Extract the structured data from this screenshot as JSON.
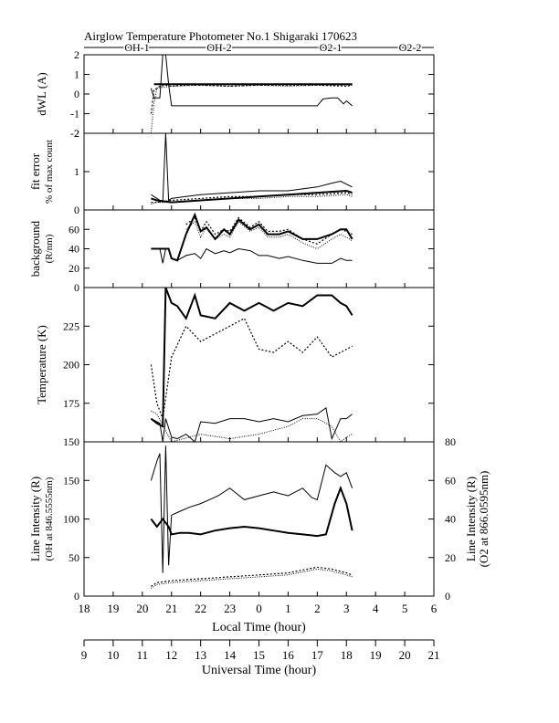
{
  "title": "Airglow Temperature Photometer No.1   Shigaraki   170623",
  "legend": [
    {
      "name": "OH-1",
      "style": "solid-thin"
    },
    {
      "name": "OH-2",
      "style": "solid-thick"
    },
    {
      "name": "O2-1",
      "style": "dotted"
    },
    {
      "name": "O2-2",
      "style": "dotted-fine"
    }
  ],
  "chart_data": {
    "type": "line",
    "x_range_local": [
      18,
      30
    ],
    "x_local_ticks": [
      "18",
      "19",
      "20",
      "21",
      "22",
      "23",
      "0",
      "1",
      "2",
      "3",
      "4",
      "5",
      "6"
    ],
    "x_ut_ticks": [
      "9",
      "10",
      "11",
      "12",
      "13",
      "14",
      "15",
      "16",
      "17",
      "18",
      "19",
      "20",
      "21"
    ],
    "xlabel_local": "Local Time (hour)",
    "xlabel_ut": "Universal Time (hour)",
    "panels": [
      {
        "id": "dwl",
        "ylabel": [
          "dWL (A)"
        ],
        "ylim": [
          -2,
          2
        ],
        "ticks": [
          "2",
          "1",
          "0",
          "-1",
          "-2"
        ],
        "series": [
          {
            "name": "OH-1",
            "x": [
              20.3,
              20.4,
              20.6,
              20.7,
              20.8,
              20.9,
              21.0,
              21.3,
              21.6,
              22.0,
              22.5,
              23.0,
              23.5,
              24.0,
              25.0,
              25.5,
              26.0,
              26.2,
              26.5,
              26.7,
              26.9,
              27.0,
              27.2
            ],
            "y": [
              0.3,
              -0.2,
              -0.2,
              2.1,
              2.0,
              0.5,
              -0.6,
              -0.6,
              -0.6,
              -0.6,
              -0.6,
              -0.6,
              -0.6,
              -0.6,
              -0.6,
              -0.6,
              -0.6,
              -0.25,
              -0.2,
              -0.2,
              -0.5,
              -0.35,
              -0.6
            ]
          },
          {
            "name": "OH-2",
            "x": [
              20.4,
              20.6,
              20.8,
              21.0,
              22.0,
              23.0,
              24.0,
              25.0,
              26.0,
              27.0,
              27.2
            ],
            "y": [
              0.5,
              0.5,
              0.5,
              0.5,
              0.5,
              0.5,
              0.5,
              0.5,
              0.5,
              0.5,
              0.5
            ]
          },
          {
            "name": "O2-1",
            "x": [
              20.3,
              20.4,
              20.6,
              20.8,
              21.0,
              21.5,
              22.0,
              23.0,
              24.0,
              25.0,
              26.0,
              27.0,
              27.2
            ],
            "y": [
              -1.0,
              0.2,
              0.4,
              0.45,
              0.4,
              0.45,
              0.45,
              0.4,
              0.45,
              0.45,
              0.45,
              0.4,
              0.45
            ]
          },
          {
            "name": "O2-2",
            "x": [
              20.3,
              20.4,
              20.5,
              21.0,
              22.0,
              23.0,
              24.0,
              25.0,
              26.0,
              27.0,
              27.2
            ],
            "y": [
              -2.0,
              -0.5,
              0.3,
              0.4,
              0.45,
              0.4,
              0.45,
              0.4,
              0.45,
              0.45,
              0.45
            ]
          }
        ]
      },
      {
        "id": "fit",
        "ylabel": [
          "fit error",
          "% of max count"
        ],
        "ylim": [
          0,
          2
        ],
        "ticks": [
          "2",
          "1",
          "0"
        ],
        "series": [
          {
            "name": "OH-1",
            "x": [
              20.3,
              20.5,
              20.7,
              20.8,
              20.9,
              21.0,
              21.5,
              22.0,
              23.0,
              24.0,
              25.0,
              26.0,
              26.5,
              26.8,
              27.2
            ],
            "y": [
              0.4,
              0.3,
              0.2,
              2.0,
              0.25,
              0.3,
              0.35,
              0.4,
              0.45,
              0.5,
              0.5,
              0.6,
              0.7,
              0.75,
              0.6
            ]
          },
          {
            "name": "OH-2",
            "x": [
              20.3,
              20.5,
              21.0,
              22.0,
              23.0,
              24.0,
              25.0,
              26.0,
              27.0,
              27.2
            ],
            "y": [
              0.3,
              0.25,
              0.2,
              0.25,
              0.3,
              0.35,
              0.4,
              0.45,
              0.5,
              0.45
            ]
          },
          {
            "name": "O2-1",
            "x": [
              20.3,
              20.5,
              21.0,
              22.0,
              23.0,
              24.0,
              25.0,
              26.0,
              27.0,
              27.2
            ],
            "y": [
              0.2,
              0.2,
              0.25,
              0.3,
              0.35,
              0.35,
              0.4,
              0.4,
              0.45,
              0.4
            ]
          },
          {
            "name": "O2-2",
            "x": [
              20.3,
              20.5,
              21.0,
              22.0,
              23.0,
              24.0,
              25.0,
              26.0,
              27.0,
              27.2
            ],
            "y": [
              0.15,
              0.2,
              0.2,
              0.25,
              0.3,
              0.3,
              0.35,
              0.35,
              0.4,
              0.35
            ]
          }
        ]
      },
      {
        "id": "background",
        "ylabel": [
          "background",
          "(R/nm)"
        ],
        "ylim": [
          0,
          80
        ],
        "ticks": [
          "60",
          "40",
          "20",
          "0"
        ],
        "series": [
          {
            "name": "OH-1",
            "x": [
              20.3,
              20.5,
              20.6,
              20.7,
              20.8,
              20.9,
              21.0,
              21.2,
              21.5,
              21.8,
              22.0,
              22.2,
              22.5,
              22.8,
              23.0,
              23.3,
              23.7,
              24.0,
              24.3,
              24.7,
              25.0,
              25.5,
              26.0,
              26.5,
              26.8,
              27.0,
              27.2
            ],
            "y": [
              40,
              40,
              40,
              25,
              40,
              40,
              30,
              28,
              33,
              35,
              30,
              40,
              35,
              38,
              36,
              40,
              38,
              33,
              33,
              30,
              32,
              28,
              25,
              25,
              30,
              28,
              28
            ]
          },
          {
            "name": "OH-2",
            "x": [
              20.3,
              20.5,
              20.7,
              20.9,
              21.0,
              21.2,
              21.5,
              21.8,
              22.0,
              22.2,
              22.5,
              22.8,
              23.0,
              23.3,
              23.7,
              24.0,
              24.3,
              24.7,
              25.0,
              25.5,
              26.0,
              26.5,
              26.8,
              27.0,
              27.2
            ],
            "y": [
              40,
              40,
              40,
              40,
              30,
              28,
              55,
              75,
              58,
              62,
              50,
              60,
              55,
              70,
              60,
              65,
              55,
              55,
              58,
              50,
              50,
              55,
              60,
              60,
              50
            ]
          },
          {
            "name": "O2-1",
            "x": [
              21.5,
              21.8,
              22.0,
              22.2,
              22.5,
              22.8,
              23.0,
              23.3,
              23.7,
              24.0,
              24.3,
              24.7,
              25.0,
              25.5,
              26.0,
              26.5,
              26.8,
              27.0,
              27.2
            ],
            "y": [
              65,
              72,
              58,
              68,
              55,
              60,
              58,
              72,
              62,
              68,
              58,
              58,
              60,
              50,
              45,
              55,
              60,
              58,
              55
            ]
          },
          {
            "name": "O2-2",
            "x": [
              21.5,
              21.8,
              22.0,
              22.2,
              22.5,
              22.8,
              23.0,
              23.3,
              23.7,
              24.0,
              24.3,
              24.7,
              25.0,
              25.5,
              26.0,
              26.5,
              26.8,
              27.0,
              27.2
            ],
            "y": [
              60,
              68,
              52,
              62,
              50,
              55,
              52,
              68,
              58,
              62,
              52,
              52,
              55,
              46,
              40,
              50,
              55,
              52,
              48
            ]
          }
        ]
      },
      {
        "id": "temperature",
        "ylabel": [
          "Temperature (K)"
        ],
        "ylim": [
          150,
          250
        ],
        "ticks": [
          "225",
          "200",
          "175",
          "150"
        ],
        "series": [
          {
            "name": "OH-1",
            "x": [
              20.3,
              20.5,
              20.6,
              20.7,
              20.8,
              21.0,
              21.2,
              21.5,
              21.8,
              22.0,
              22.5,
              23.0,
              23.5,
              24.0,
              24.5,
              25.0,
              25.5,
              26.0,
              26.3,
              26.5,
              26.8,
              27.0,
              27.2
            ],
            "y": [
              165,
              163,
              162,
              150,
              165,
              153,
              152,
              155,
              150,
              163,
              162,
              165,
              165,
              163,
              165,
              163,
              167,
              168,
              172,
              152,
              165,
              165,
              168
            ]
          },
          {
            "name": "OH-2",
            "x": [
              20.3,
              20.5,
              20.7,
              20.8,
              20.9,
              21.0,
              21.2,
              21.5,
              21.8,
              22.0,
              22.5,
              23.0,
              23.5,
              24.0,
              24.5,
              25.0,
              25.5,
              26.0,
              26.5,
              26.8,
              27.0,
              27.2
            ],
            "y": [
              165,
              162,
              160,
              250,
              245,
              240,
              238,
              230,
              245,
              232,
              230,
              240,
              235,
              240,
              235,
              240,
              238,
              245,
              245,
              240,
              238,
              232
            ]
          },
          {
            "name": "O2-1",
            "x": [
              20.3,
              20.5,
              20.7,
              21.0,
              21.5,
              22.0,
              22.5,
              23.0,
              23.5,
              24.0,
              24.5,
              25.0,
              25.5,
              26.0,
              26.5,
              27.0,
              27.2
            ],
            "y": [
              200,
              175,
              165,
              205,
              225,
              215,
              220,
              225,
              230,
              210,
              208,
              215,
              208,
              218,
              205,
              210,
              212
            ]
          },
          {
            "name": "O2-2",
            "x": [
              20.3,
              20.5,
              21.0,
              22.0,
              23.0,
              24.0,
              25.0,
              25.5,
              26.0,
              26.5,
              26.8,
              27.0,
              27.2
            ],
            "y": [
              170,
              168,
              150,
              155,
              152,
              155,
              160,
              165,
              165,
              160,
              150,
              153,
              155
            ]
          }
        ]
      },
      {
        "id": "intensity",
        "ylabel": [
          "Line Intensity (R)",
          "(OH at 846.5555nm)"
        ],
        "ylabel_right": [
          "Line Intensity (R)",
          "(O2 at 866.0595nm)"
        ],
        "ylim": [
          0,
          200
        ],
        "ylim_right": [
          0,
          80
        ],
        "ticks": [
          "150",
          "100",
          "50",
          "0"
        ],
        "ticks_right": [
          "80",
          "60",
          "40",
          "20",
          "0"
        ],
        "series": [
          {
            "name": "OH-1",
            "axis": "left",
            "x": [
              20.3,
              20.5,
              20.6,
              20.7,
              20.8,
              20.9,
              21.0,
              21.3,
              21.6,
              22.0,
              22.3,
              22.6,
              23.0,
              23.5,
              24.0,
              24.5,
              25.0,
              25.5,
              25.8,
              26.0,
              26.3,
              26.6,
              26.8,
              27.0,
              27.2
            ],
            "y": [
              150,
              175,
              185,
              30,
              195,
              40,
              105,
              110,
              115,
              120,
              125,
              130,
              140,
              125,
              130,
              135,
              130,
              140,
              128,
              125,
              170,
              160,
              155,
              160,
              140
            ]
          },
          {
            "name": "OH-2",
            "axis": "left",
            "x": [
              20.3,
              20.5,
              20.6,
              20.7,
              20.8,
              20.9,
              21.0,
              21.3,
              21.6,
              22.0,
              22.5,
              23.0,
              23.5,
              24.0,
              24.5,
              25.0,
              25.5,
              26.0,
              26.3,
              26.6,
              26.8,
              27.0,
              27.2
            ],
            "y": [
              100,
              90,
              95,
              100,
              95,
              90,
              80,
              82,
              82,
              80,
              85,
              88,
              90,
              88,
              85,
              82,
              80,
              78,
              80,
              120,
              140,
              120,
              85
            ]
          },
          {
            "name": "O2-1",
            "axis": "right",
            "x": [
              20.3,
              20.5,
              21.0,
              22.0,
              23.0,
              24.0,
              25.0,
              26.0,
              26.5,
              27.0,
              27.2
            ],
            "y": [
              5,
              7,
              8,
              9,
              10,
              11,
              12,
              15,
              14,
              12,
              11
            ]
          },
          {
            "name": "O2-2",
            "axis": "right",
            "x": [
              20.3,
              20.5,
              21.0,
              22.0,
              23.0,
              24.0,
              25.0,
              26.0,
              26.5,
              27.0,
              27.2
            ],
            "y": [
              4,
              6,
              7,
              8,
              9,
              10,
              11,
              14,
              13,
              11,
              10
            ]
          }
        ]
      }
    ]
  }
}
